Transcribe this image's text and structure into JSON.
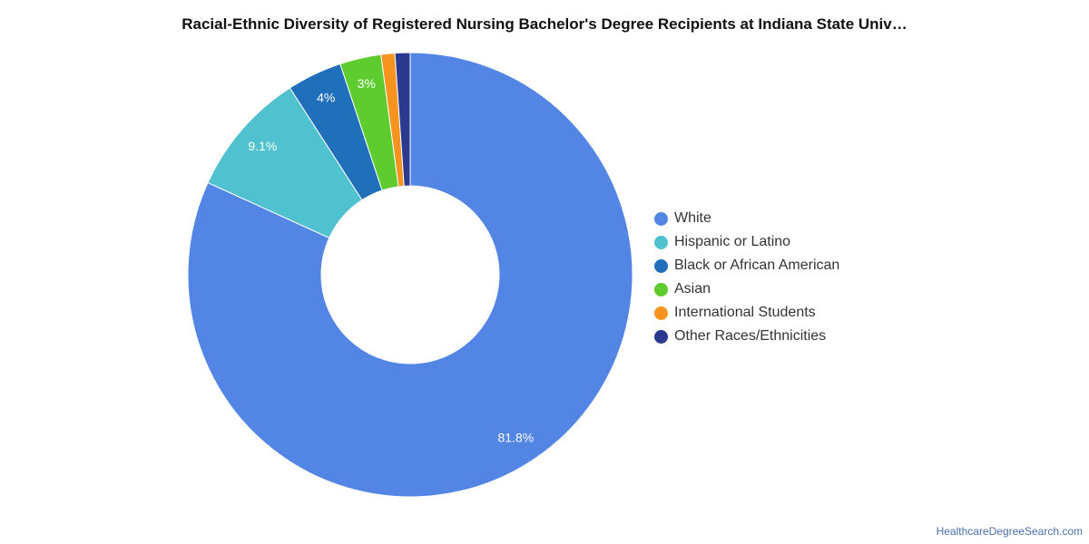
{
  "chart_data": {
    "type": "pie",
    "title": "Racial-Ethnic Diversity of Registered Nursing Bachelor's Degree Recipients at Indiana State Univ…",
    "donut": true,
    "legend_position": "right",
    "categories": [
      "White",
      "Hispanic or Latino",
      "Black or African American",
      "Asian",
      "International Students",
      "Other Races/Ethnicities"
    ],
    "values": [
      81.8,
      9.1,
      4.0,
      3.0,
      1.0,
      1.1
    ],
    "data_labels": [
      "81.8%",
      "9.1%",
      "4%",
      "3%",
      "",
      ""
    ],
    "colors": [
      "#5386e4",
      "#4fc1cf",
      "#1f6fba",
      "#5ecc2e",
      "#f7931e",
      "#2b3a8f"
    ]
  },
  "source": "HealthcareDegreeSearch.com"
}
